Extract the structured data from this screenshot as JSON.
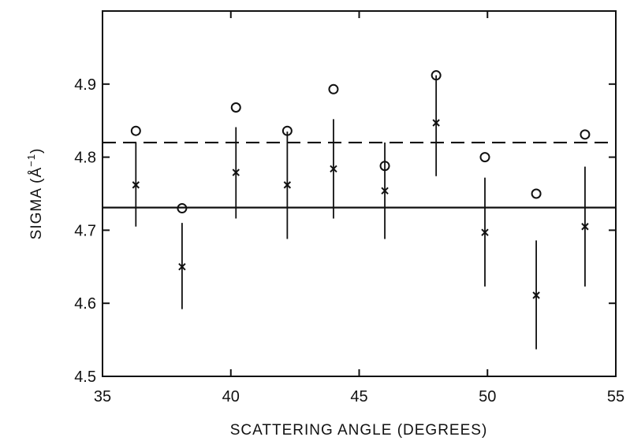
{
  "chart_data": {
    "type": "scatter",
    "title": "",
    "xlabel": "SCATTERING ANGLE (DEGREES)",
    "ylabel_main": "SIGMA (",
    "ylabel_unit": "Å",
    "ylabel_exp": "−1",
    "ylabel_close": ")",
    "xlim": [
      35,
      55
    ],
    "ylim": [
      4.5,
      5.0
    ],
    "x_ticks": [
      35,
      40,
      45,
      50,
      55
    ],
    "x_tick_labels": [
      "35",
      "40",
      "45",
      "50",
      "55"
    ],
    "y_ticks": [
      4.5,
      4.6,
      4.7,
      4.8,
      4.9
    ],
    "y_tick_labels": [
      "4.5",
      "4.6",
      "4.7",
      "4.8",
      "4.9"
    ],
    "grid": false,
    "series": [
      {
        "marker": "circle",
        "points": [
          {
            "x": 36.3,
            "y": 4.836
          },
          {
            "x": 38.1,
            "y": 4.73
          },
          {
            "x": 40.2,
            "y": 4.868
          },
          {
            "x": 42.2,
            "y": 4.836
          },
          {
            "x": 44.0,
            "y": 4.893
          },
          {
            "x": 46.0,
            "y": 4.788
          },
          {
            "x": 48.0,
            "y": 4.912
          },
          {
            "x": 49.9,
            "y": 4.8
          },
          {
            "x": 51.9,
            "y": 4.75
          },
          {
            "x": 53.8,
            "y": 4.831
          }
        ]
      },
      {
        "marker": "cross",
        "points": [
          {
            "x": 36.3,
            "y": 4.762,
            "y_err_low": 4.705,
            "y_err_high": 4.82
          },
          {
            "x": 38.1,
            "y": 4.65,
            "y_err_low": 4.592,
            "y_err_high": 4.71
          },
          {
            "x": 40.2,
            "y": 4.779,
            "y_err_low": 4.716,
            "y_err_high": 4.841
          },
          {
            "x": 42.2,
            "y": 4.762,
            "y_err_low": 4.688,
            "y_err_high": 4.835
          },
          {
            "x": 44.0,
            "y": 4.784,
            "y_err_low": 4.716,
            "y_err_high": 4.852
          },
          {
            "x": 46.0,
            "y": 4.754,
            "y_err_low": 4.688,
            "y_err_high": 4.82
          },
          {
            "x": 48.0,
            "y": 4.847,
            "y_err_low": 4.774,
            "y_err_high": 4.912
          },
          {
            "x": 49.9,
            "y": 4.697,
            "y_err_low": 4.623,
            "y_err_high": 4.772
          },
          {
            "x": 51.9,
            "y": 4.611,
            "y_err_low": 4.537,
            "y_err_high": 4.686
          },
          {
            "x": 53.8,
            "y": 4.705,
            "y_err_low": 4.623,
            "y_err_high": 4.787
          }
        ]
      }
    ],
    "reference_lines": [
      {
        "style": "solid",
        "y": 4.731
      },
      {
        "style": "dashed",
        "y": 4.82
      }
    ]
  }
}
